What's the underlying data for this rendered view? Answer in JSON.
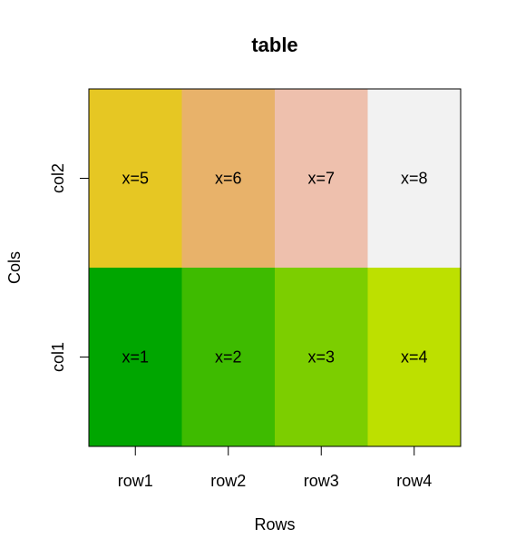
{
  "chart_data": {
    "type": "heatmap",
    "title": "table",
    "xlabel": "Rows",
    "ylabel": "Cols",
    "x_categories": [
      "row1",
      "row2",
      "row3",
      "row4"
    ],
    "y_categories": [
      "col1",
      "col2"
    ],
    "cells": [
      {
        "x": "row1",
        "y": "col1",
        "value": 1,
        "label": "x=1",
        "color": "#00A600"
      },
      {
        "x": "row2",
        "y": "col1",
        "value": 2,
        "label": "x=2",
        "color": "#3EBB00"
      },
      {
        "x": "row3",
        "y": "col1",
        "value": 3,
        "label": "x=3",
        "color": "#7CCE00"
      },
      {
        "x": "row4",
        "y": "col1",
        "value": 4,
        "label": "x=4",
        "color": "#BDE000"
      },
      {
        "x": "row1",
        "y": "col2",
        "value": 5,
        "label": "x=5",
        "color": "#E6C723"
      },
      {
        "x": "row2",
        "y": "col2",
        "value": 6,
        "label": "x=6",
        "color": "#E8B26A"
      },
      {
        "x": "row3",
        "y": "col2",
        "value": 7,
        "label": "x=7",
        "color": "#EEC0AD"
      },
      {
        "x": "row4",
        "y": "col2",
        "value": 8,
        "label": "x=8",
        "color": "#F2F2F2"
      }
    ],
    "legend": "none",
    "grid": false
  }
}
